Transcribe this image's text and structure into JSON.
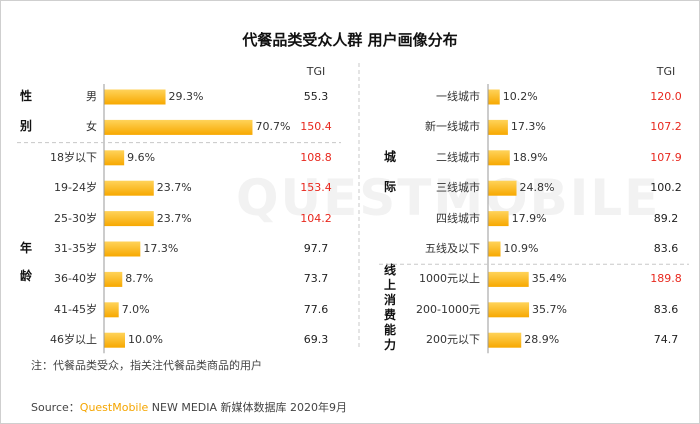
{
  "title": "代餐品类受众人群 用户画像分布",
  "tgi_header": "TGI",
  "watermark": "QUESTMOBILE",
  "colors": {
    "bar_top": "#ffd35a",
    "bar_bottom": "#f7a800",
    "tgi_high": "#e8281e",
    "tgi_normal": "#222222",
    "divider": "#c8c8c8"
  },
  "left_groups": [
    {
      "label": "性别",
      "chars": [
        "性",
        "别"
      ]
    },
    {
      "label": "年龄",
      "chars": [
        "年",
        "龄"
      ]
    }
  ],
  "right_groups": [
    {
      "label": "城际",
      "chars": [
        "城",
        "际"
      ]
    },
    {
      "label": "线上消费能力",
      "chars": [
        "线",
        "上",
        "消",
        "费",
        "能",
        "力"
      ]
    }
  ],
  "chart_data": [
    {
      "type": "bar",
      "title": "",
      "categories": [
        "男",
        "女",
        "18岁以下",
        "19-24岁",
        "25-30岁",
        "31-35岁",
        "36-40岁",
        "41-45岁",
        "46岁以上"
      ],
      "values": [
        29.3,
        70.7,
        9.6,
        23.7,
        23.7,
        17.3,
        8.7,
        7.0,
        10.0
      ],
      "value_labels": [
        "29.3%",
        "70.7%",
        "9.6%",
        "23.7%",
        "23.7%",
        "17.3%",
        "8.7%",
        "7.0%",
        "10.0%"
      ],
      "tgi": [
        "55.3",
        "150.4",
        "108.8",
        "153.4",
        "104.2",
        "97.7",
        "73.7",
        "77.6",
        "69.3"
      ],
      "tgi_highlight": [
        false,
        true,
        true,
        true,
        true,
        false,
        false,
        false,
        false
      ],
      "unit": "%"
    },
    {
      "type": "bar",
      "title": "",
      "categories": [
        "一线城市",
        "新一线城市",
        "二线城市",
        "三线城市",
        "四线城市",
        "五线及以下",
        "1000元以上",
        "200-1000元",
        "200元以下"
      ],
      "values": [
        10.2,
        17.3,
        18.9,
        24.8,
        17.9,
        10.9,
        35.4,
        35.7,
        28.9
      ],
      "value_labels": [
        "10.2%",
        "17.3%",
        "18.9%",
        "24.8%",
        "17.9%",
        "10.9%",
        "35.4%",
        "35.7%",
        "28.9%"
      ],
      "tgi": [
        "120.0",
        "107.2",
        "107.9",
        "100.2",
        "89.2",
        "83.6",
        "189.8",
        "83.6",
        "74.7"
      ],
      "tgi_highlight": [
        true,
        true,
        true,
        false,
        false,
        false,
        true,
        false,
        false
      ],
      "unit": "%"
    }
  ],
  "note": "注：代餐品类受众，指关注代餐品类商品的用户",
  "source": {
    "prefix": "Source：",
    "brand": "QuestMobile",
    "rest": " NEW MEDIA 新媒体数据库 2020年9月"
  }
}
